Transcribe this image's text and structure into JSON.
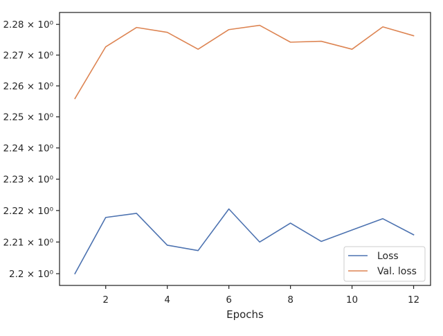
{
  "chart_data": {
    "type": "line",
    "xlabel": "Epochs",
    "ylabel": "",
    "y_scale": "log",
    "x": [
      1,
      2,
      3,
      4,
      5,
      6,
      7,
      8,
      9,
      10,
      11,
      12
    ],
    "xlim": [
      0.5,
      12.55
    ],
    "ylim": [
      2.1963,
      2.2839
    ],
    "x_ticks": [
      2,
      4,
      6,
      8,
      10,
      12
    ],
    "y_ticks": [
      {
        "value": 2.2,
        "label": "2.2 × 10⁰"
      },
      {
        "value": 2.21,
        "label": "2.21 × 10⁰"
      },
      {
        "value": 2.22,
        "label": "2.22 × 10⁰"
      },
      {
        "value": 2.23,
        "label": "2.23 × 10⁰"
      },
      {
        "value": 2.24,
        "label": "2.24 × 10⁰"
      },
      {
        "value": 2.25,
        "label": "2.25 × 10⁰"
      },
      {
        "value": 2.26,
        "label": "2.26 × 10⁰"
      },
      {
        "value": 2.27,
        "label": "2.27 × 10⁰"
      },
      {
        "value": 2.28,
        "label": "2.28 × 10⁰"
      }
    ],
    "grid": false,
    "legend_position": "lower-right",
    "series": [
      {
        "name": "Loss",
        "color": "#4c72b0",
        "values": [
          2.2,
          2.2178,
          2.2191,
          2.209,
          2.2073,
          2.2205,
          2.21,
          2.216,
          2.2102,
          2.2138,
          2.2174,
          2.2123
        ]
      },
      {
        "name": "Val. loss",
        "color": "#dd8452",
        "values": [
          2.2559,
          2.2727,
          2.279,
          2.2774,
          2.2719,
          2.2783,
          2.2797,
          2.2742,
          2.2745,
          2.2719,
          2.2792,
          2.2763
        ]
      }
    ]
  }
}
